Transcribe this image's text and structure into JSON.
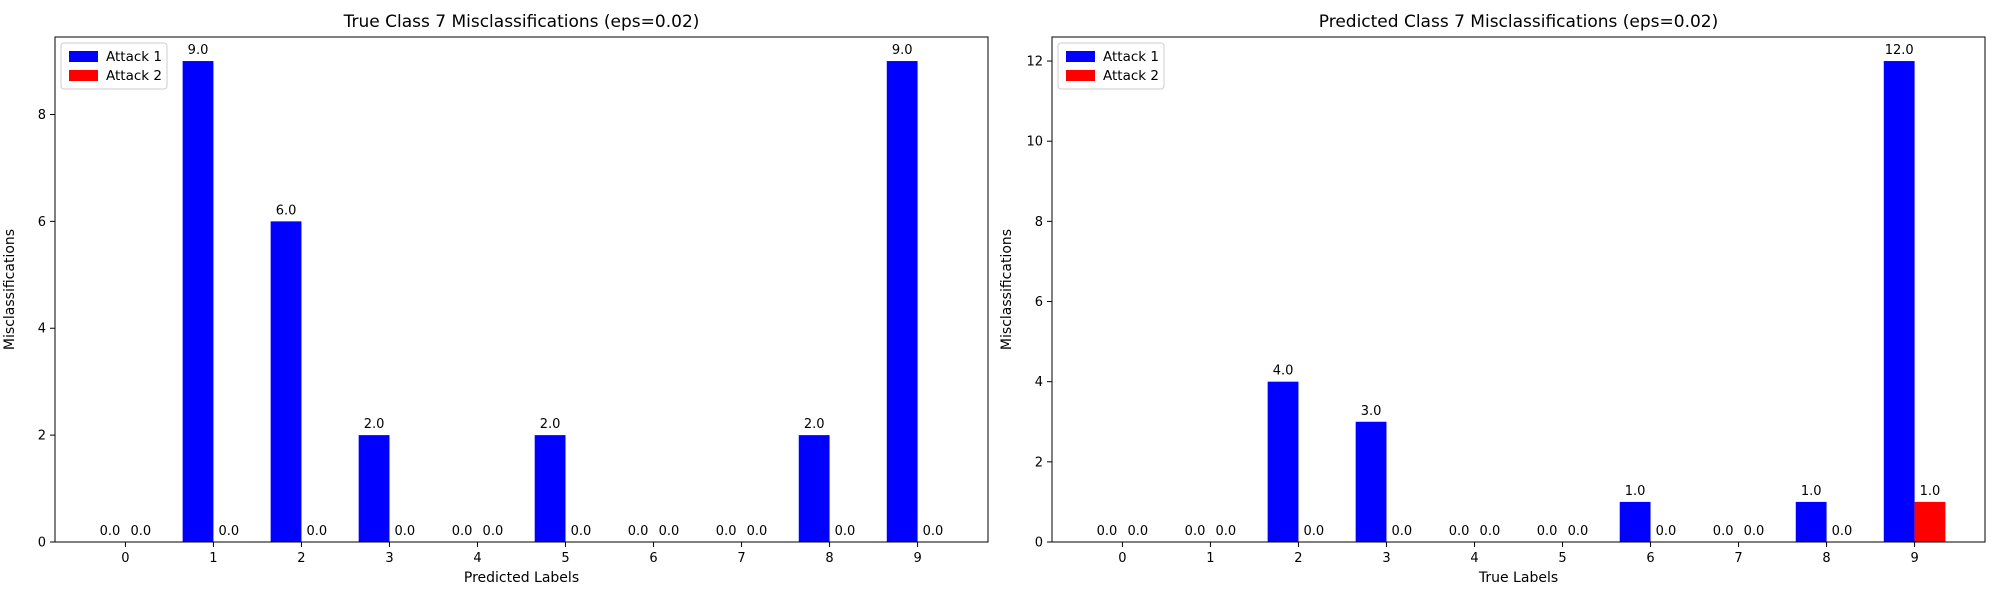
{
  "chart_data": [
    {
      "type": "bar",
      "title": "True Class 7 Misclassifications (eps=0.02)",
      "xlabel": "Predicted Labels",
      "ylabel": "Misclassifications",
      "categories": [
        "0",
        "1",
        "2",
        "3",
        "4",
        "5",
        "6",
        "7",
        "8",
        "9"
      ],
      "ylim": [
        0,
        9.45
      ],
      "yticks": [
        0,
        2,
        4,
        6,
        8
      ],
      "legend_position": "top-left",
      "series": [
        {
          "name": "Attack 1",
          "color": "#0000ff",
          "values": [
            0,
            9,
            6,
            2,
            0,
            2,
            0,
            0,
            2,
            9
          ]
        },
        {
          "name": "Attack 2",
          "color": "#ff0000",
          "values": [
            0,
            0,
            0,
            0,
            0,
            0,
            0,
            0,
            0,
            0
          ]
        }
      ]
    },
    {
      "type": "bar",
      "title": "Predicted Class 7 Misclassifications (eps=0.02)",
      "xlabel": "True Labels",
      "ylabel": "Misclassifications",
      "categories": [
        "0",
        "1",
        "2",
        "3",
        "4",
        "5",
        "6",
        "7",
        "8",
        "9"
      ],
      "ylim": [
        0,
        12.6
      ],
      "yticks": [
        0,
        2,
        4,
        6,
        8,
        10,
        12
      ],
      "legend_position": "top-left",
      "series": [
        {
          "name": "Attack 1",
          "color": "#0000ff",
          "values": [
            0,
            0,
            4,
            3,
            0,
            0,
            1,
            0,
            1,
            12
          ]
        },
        {
          "name": "Attack 2",
          "color": "#ff0000",
          "values": [
            0,
            0,
            0,
            0,
            0,
            0,
            0,
            0,
            0,
            1
          ]
        }
      ]
    }
  ]
}
